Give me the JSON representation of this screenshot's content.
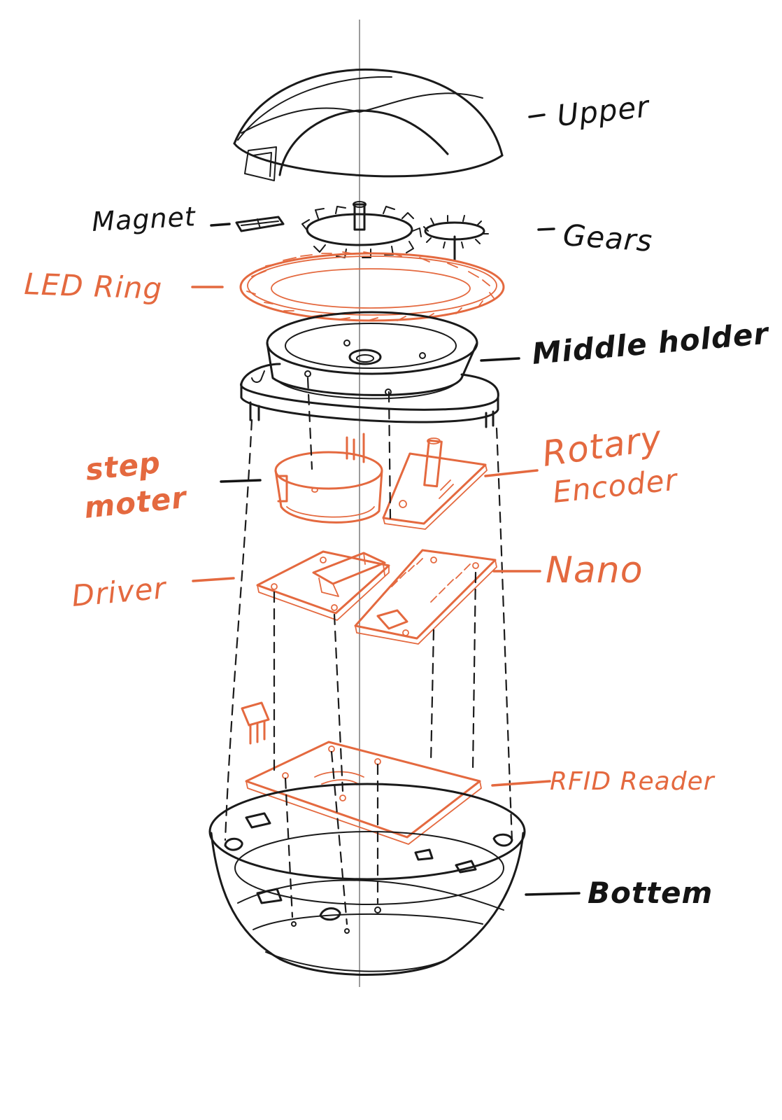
{
  "title": "",
  "colors": {
    "ink": "#1a1a1a",
    "accent_orange": "#e4693f",
    "background": "#ffffff"
  },
  "labels": {
    "upper": "Upper",
    "magnet": "Magnet",
    "gears": "Gears",
    "led_ring": "LED Ring",
    "middle_holder": "Middle holder",
    "step_motor_line1": "step",
    "step_motor_line2": "moter",
    "rotary_encoder_line1": "Rotary",
    "rotary_encoder_line2": "Encoder",
    "driver": "Driver",
    "nano": "Nano",
    "rfid_reader": "RFID Reader",
    "bottom": "Bottem"
  }
}
